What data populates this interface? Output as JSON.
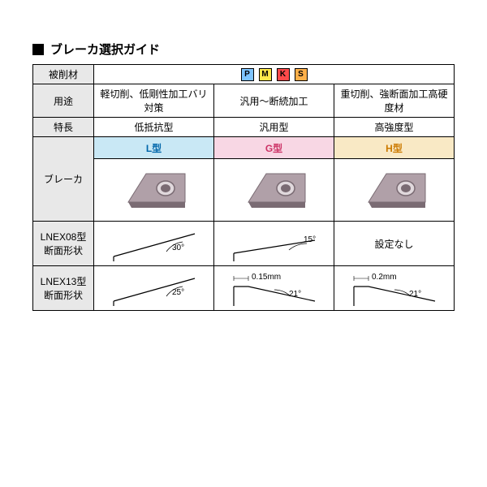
{
  "title": "ブレーカ選択ガイド",
  "row_labels": {
    "material": "被削材",
    "use": "用途",
    "feature": "特長",
    "breaker": "ブレーカ",
    "lnex08": "LNEX08型\n断面形状",
    "lnex13": "LNEX13型\n断面形状"
  },
  "material_badges": [
    {
      "letter": "P",
      "bg": "#7fc5ff"
    },
    {
      "letter": "M",
      "bg": "#ffe94a"
    },
    {
      "letter": "K",
      "bg": "#ff4a4a"
    },
    {
      "letter": "S",
      "bg": "#ffb04a"
    }
  ],
  "columns": [
    {
      "use": "軽切削、低剛性加工バリ対策",
      "feature": "低抵抗型",
      "type_label": "L型",
      "type_bg": "#c9e8f5",
      "type_color": "#0066aa",
      "lnex08": {
        "kind": "angle",
        "angle": "30°",
        "land": null
      },
      "lnex13": {
        "kind": "angle",
        "angle": "25°",
        "land": null
      }
    },
    {
      "use": "汎用～断続加工",
      "feature": "汎用型",
      "type_label": "G型",
      "type_bg": "#f8d7e4",
      "type_color": "#cc3366",
      "lnex08": {
        "kind": "flat",
        "angle": "15°",
        "land": null
      },
      "lnex13": {
        "kind": "land",
        "angle": "21°",
        "land": "0.15mm"
      }
    },
    {
      "use": "重切削、強断面加工高硬度材",
      "feature": "高強度型",
      "type_label": "H型",
      "type_bg": "#f9e9c5",
      "type_color": "#cc7a00",
      "lnex08": {
        "kind": "text",
        "text": "設定なし"
      },
      "lnex13": {
        "kind": "land",
        "angle": "21°",
        "land": "0.2mm"
      }
    }
  ],
  "insert_colors": {
    "body": "#b0a0a8",
    "body_dark": "#7a6b73",
    "hole": "#e0d8dc"
  }
}
